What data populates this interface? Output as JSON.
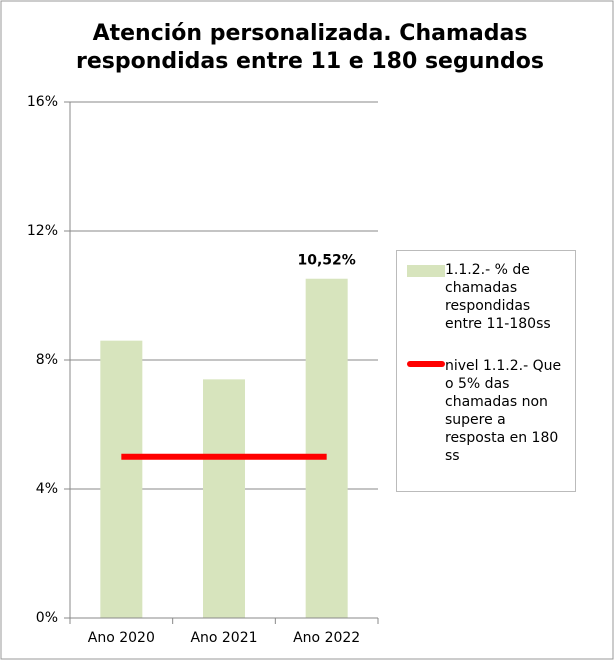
{
  "chart_data": {
    "type": "bar",
    "title": "Atención personalizada. Chamadas respondidas entre 11 e 180 segundos",
    "categories": [
      "Ano 2020",
      "Ano 2021",
      "Ano 2022"
    ],
    "series": [
      {
        "name": "1.1.2.- % de chamadas respondidas entre 11-180ss",
        "type": "bar",
        "color": "#d7e4bd",
        "values": [
          8.6,
          7.4,
          10.52
        ],
        "value_labels": [
          null,
          null,
          "10,52%"
        ]
      },
      {
        "name": "nivel 1.1.2.- Que o 5% das chamadas non supere a resposta en 180 ss",
        "type": "line",
        "color": "#ff0000",
        "values": [
          5,
          5,
          5
        ]
      }
    ],
    "ylim": [
      0,
      16
    ],
    "yticks": [
      {
        "value": 0,
        "label": "0%"
      },
      {
        "value": 4,
        "label": "4%"
      },
      {
        "value": 8,
        "label": "8%"
      },
      {
        "value": 12,
        "label": "12%"
      },
      {
        "value": 16,
        "label": "16%"
      }
    ],
    "grid": true,
    "legend": "right"
  }
}
